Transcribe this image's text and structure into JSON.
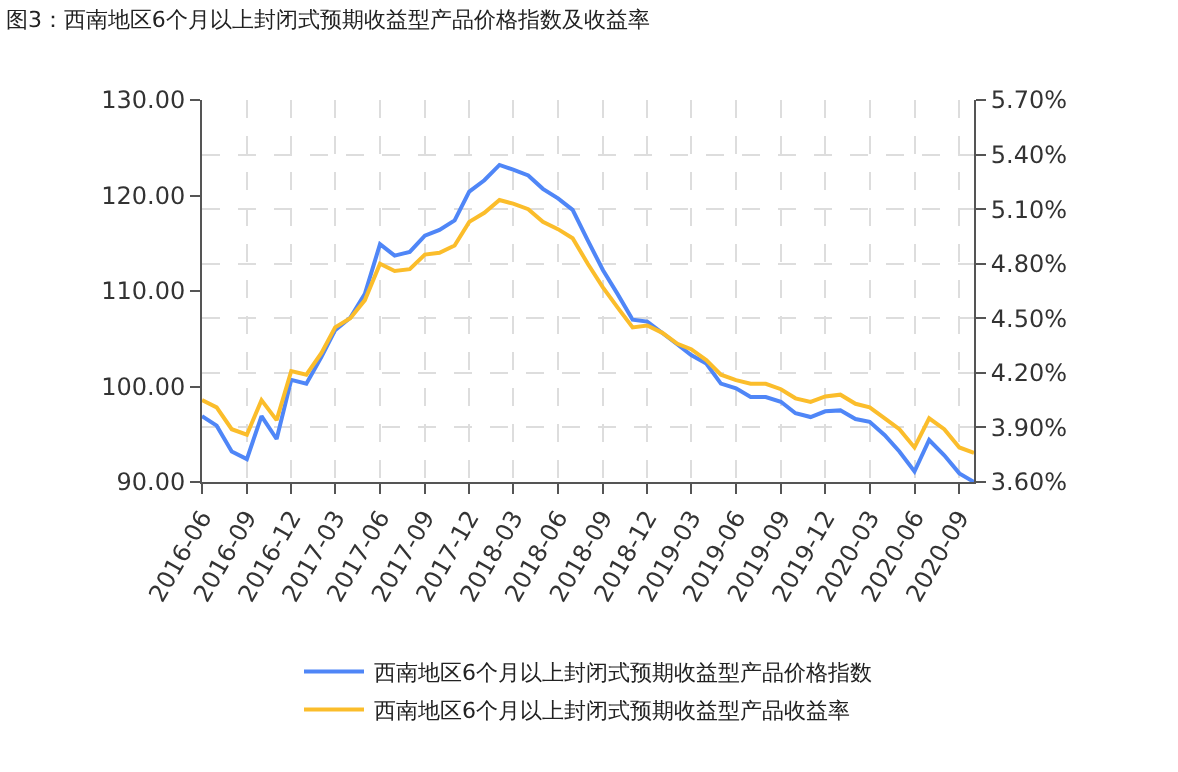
{
  "chart_data": {
    "type": "line",
    "title": "图3：西南地区6个月以上封闭式预期收益型产品价格指数及收益率",
    "x": [
      "2016-06",
      "2016-07",
      "2016-08",
      "2016-09",
      "2016-10",
      "2016-11",
      "2016-12",
      "2017-01",
      "2017-02",
      "2017-03",
      "2017-04",
      "2017-05",
      "2017-06",
      "2017-07",
      "2017-08",
      "2017-09",
      "2017-10",
      "2017-11",
      "2017-12",
      "2018-01",
      "2018-02",
      "2018-03",
      "2018-04",
      "2018-05",
      "2018-06",
      "2018-07",
      "2018-08",
      "2018-09",
      "2018-10",
      "2018-11",
      "2018-12",
      "2019-01",
      "2019-02",
      "2019-03",
      "2019-04",
      "2019-05",
      "2019-06",
      "2019-07",
      "2019-08",
      "2019-09",
      "2019-10",
      "2019-11",
      "2019-12",
      "2020-01",
      "2020-02",
      "2020-03",
      "2020-04",
      "2020-05",
      "2020-06",
      "2020-07",
      "2020-08",
      "2020-09",
      "2020-10"
    ],
    "series": [
      {
        "name": "西南地区6个月以上封闭式预期收益型产品价格指数",
        "color": "#4f86f7",
        "values": [
          96.9,
          95.9,
          93.2,
          92.4,
          96.9,
          94.5,
          100.7,
          100.3,
          103.1,
          105.9,
          107.2,
          109.7,
          114.9,
          113.7,
          114.1,
          115.8,
          116.4,
          117.4,
          120.4,
          121.6,
          123.2,
          122.7,
          122.1,
          120.7,
          119.7,
          118.5,
          115.3,
          112.2,
          109.7,
          107.0,
          106.8,
          105.6,
          104.4,
          103.3,
          102.4,
          100.3,
          99.8,
          98.9,
          98.9,
          98.4,
          97.2,
          96.8,
          97.4,
          97.5,
          96.6,
          96.3,
          94.9,
          93.2,
          91.1,
          94.4,
          92.8,
          90.9,
          90.0
        ]
      },
      {
        "name": "西南地区6个月以上封闭式预期收益型产品收益率",
        "color": "#fbbd2b",
        "axis": "y2",
        "values": [
          4.05,
          4.01,
          3.89,
          3.86,
          4.05,
          3.94,
          4.21,
          4.19,
          4.31,
          4.45,
          4.5,
          4.6,
          4.8,
          4.76,
          4.77,
          4.85,
          4.86,
          4.9,
          5.03,
          5.08,
          5.15,
          5.13,
          5.1,
          5.03,
          4.99,
          4.94,
          4.8,
          4.67,
          4.56,
          4.45,
          4.46,
          4.42,
          4.36,
          4.33,
          4.27,
          4.19,
          4.16,
          4.14,
          4.14,
          4.11,
          4.06,
          4.04,
          4.07,
          4.08,
          4.03,
          4.01,
          3.95,
          3.89,
          3.79,
          3.95,
          3.89,
          3.79,
          3.76
        ]
      }
    ],
    "xlim": [
      "2016-06",
      "2020-10"
    ],
    "xticks": [
      "2016-06",
      "2016-09",
      "2016-12",
      "2017-03",
      "2017-06",
      "2017-09",
      "2017-12",
      "2018-03",
      "2018-06",
      "2018-09",
      "2018-12",
      "2019-03",
      "2019-06",
      "2019-09",
      "2019-12",
      "2020-03",
      "2020-06",
      "2020-09"
    ],
    "ylim": [
      90,
      130
    ],
    "yticks": [
      {
        "value": 90,
        "label": "90.00"
      },
      {
        "value": 100,
        "label": "100.00"
      },
      {
        "value": 110,
        "label": "110.00"
      },
      {
        "value": 120,
        "label": "120.00"
      },
      {
        "value": 130,
        "label": "130.00"
      }
    ],
    "y2lim": [
      3.6,
      5.7
    ],
    "y2ticks": [
      {
        "value": 3.6,
        "label": "3.60%"
      },
      {
        "value": 3.9,
        "label": "3.90%"
      },
      {
        "value": 4.2,
        "label": "4.20%"
      },
      {
        "value": 4.5,
        "label": "4.50%"
      },
      {
        "value": 4.8,
        "label": "4.80%"
      },
      {
        "value": 5.1,
        "label": "5.10%"
      },
      {
        "value": 5.4,
        "label": "5.40%"
      },
      {
        "value": 5.7,
        "label": "5.70%"
      }
    ],
    "grid": true,
    "line_style": "solid",
    "legend": "bottom"
  }
}
